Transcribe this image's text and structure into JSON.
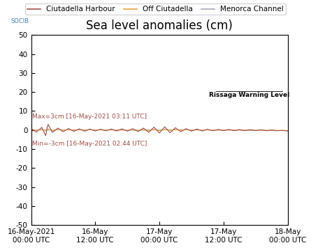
{
  "chart_data": {
    "type": "line",
    "title": "Sea level anomalies (cm)",
    "logo": "SOCIB",
    "inset_label": "Rissaga Warning Level",
    "annotations": [
      "Max=3cm [16-May-2021 03:11 UTC]",
      "Min=-3cm [16-May-2021 02:44 UTC]"
    ],
    "x": [
      0,
      1,
      2,
      2.73,
      3,
      3.18,
      4,
      5,
      6,
      7,
      8,
      9,
      10,
      11,
      12,
      13,
      14,
      15,
      16,
      17,
      18,
      19,
      20,
      21,
      22,
      23,
      24,
      25,
      26,
      27,
      28,
      29,
      30,
      31,
      32,
      33,
      34,
      35,
      36,
      37,
      38,
      39,
      40,
      41,
      42,
      43,
      44,
      45,
      46,
      47,
      48
    ],
    "series": [
      {
        "name": "Menorca Channel",
        "color": "#a8a8b8",
        "values": [
          0,
          0,
          0,
          0,
          0,
          0,
          0,
          0.1,
          0.1,
          0.1,
          0.1,
          0.1,
          0.1,
          0.1,
          0,
          0,
          0,
          0,
          0,
          -0.1,
          -0.1,
          -0.1,
          -0.1,
          -0.1,
          0,
          0,
          0,
          0.1,
          0.1,
          0.1,
          0.1,
          0.1,
          0,
          0,
          0,
          0,
          -0.1,
          -0.1,
          -0.1,
          -0.1,
          -0.1,
          -0.1,
          -0.2,
          -0.2,
          -0.2,
          -0.2,
          -0.2,
          -0.3,
          -0.3,
          -0.3,
          -0.3
        ]
      },
      {
        "name": "Off Ciutadella",
        "color": "#e8a33c",
        "values": [
          0.3,
          -0.3,
          0.4,
          -0.5,
          0.3,
          0.5,
          -0.3,
          0.3,
          -0.2,
          0.2,
          -0.2,
          0.2,
          -0.2,
          0.2,
          -0.2,
          0.2,
          -0.2,
          0.2,
          -0.2,
          0.2,
          -0.2,
          0.3,
          -0.3,
          0.3,
          -0.4,
          0.4,
          -0.4,
          0.4,
          -0.3,
          0.3,
          -0.2,
          0.2,
          -0.2,
          0.2,
          -0.2,
          0.1,
          -0.1,
          0.1,
          -0.1,
          0.1,
          -0.1,
          0.1,
          -0.1,
          0.1,
          -0.2,
          0.1,
          -0.2,
          -0.1,
          -0.2,
          -0.2,
          -0.3
        ]
      },
      {
        "name": "Ciutadella Harbour",
        "color": "#a0504a",
        "values": [
          0.8,
          -1.1,
          1.4,
          -3,
          1.2,
          3,
          -1.3,
          1.0,
          -0.9,
          0.8,
          -0.7,
          0.6,
          -0.6,
          0.5,
          -0.5,
          0.4,
          -0.4,
          0.5,
          -0.5,
          0.6,
          -0.6,
          0.7,
          -0.8,
          1.0,
          -1.2,
          1.5,
          -1.6,
          1.7,
          -1.5,
          1.2,
          -0.9,
          0.7,
          -0.6,
          0.5,
          -0.5,
          0.4,
          -0.4,
          0.3,
          -0.3,
          0.3,
          -0.3,
          0.2,
          -0.3,
          0.2,
          -0.3,
          0.1,
          -0.4,
          0,
          -0.4,
          -0.2,
          -0.5
        ]
      }
    ],
    "legend_order": [
      "Ciutadella Harbour",
      "Off Ciutadella",
      "Menorca Channel"
    ],
    "xlim": [
      0,
      48
    ],
    "xticks": [
      {
        "value": 0,
        "label": "16-May-2021\n00:00 UTC"
      },
      {
        "value": 12,
        "label": "16-May\n12:00 UTC"
      },
      {
        "value": 24,
        "label": "17-May\n00:00 UTC"
      },
      {
        "value": 36,
        "label": "17-May\n12:00 UTC"
      },
      {
        "value": 48,
        "label": "18-May\n00:00 UTC"
      }
    ],
    "ylim": [
      -50,
      50
    ],
    "yticks": [
      -50,
      -40,
      -30,
      -20,
      -10,
      0,
      10,
      20,
      30,
      40,
      50
    ],
    "grid": false,
    "legend": "upper center"
  }
}
